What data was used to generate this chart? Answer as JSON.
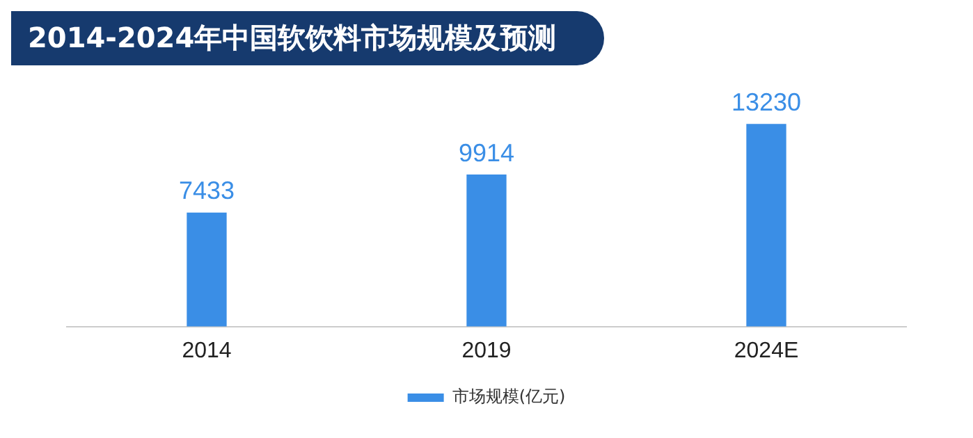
{
  "chart_data": {
    "type": "bar",
    "title": "2014-2024年中国软饮料市场规模及预测",
    "categories": [
      "2014",
      "2019",
      "2024E"
    ],
    "series": [
      {
        "name": "市场规模(亿元)",
        "color": "#3a8ee6",
        "values": [
          7433,
          9914,
          13230
        ]
      }
    ],
    "data_labels": true,
    "legend": "bottom",
    "grid": false
  }
}
